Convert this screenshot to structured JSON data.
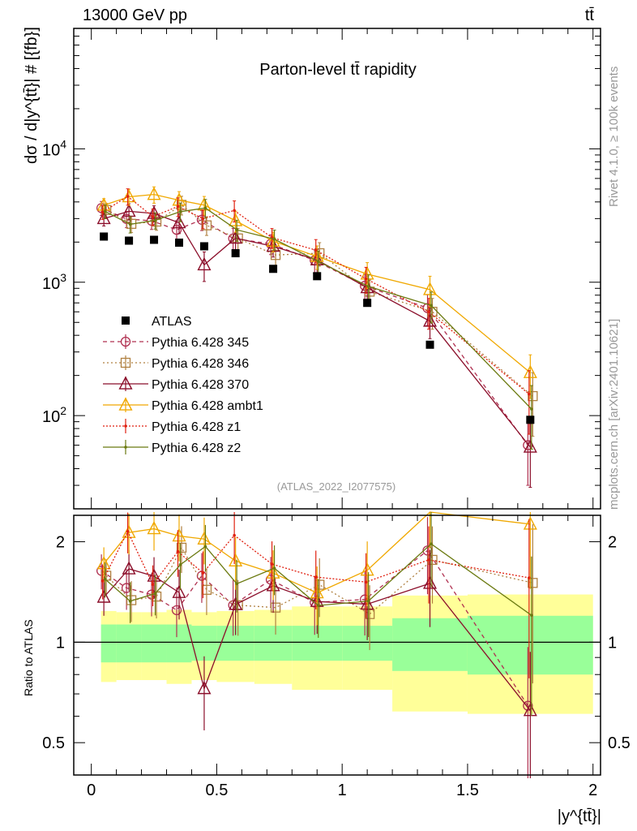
{
  "header": {
    "energy": "13000 GeV pp",
    "process": "tt̄"
  },
  "side": {
    "rivet": "Rivet 4.1.0, ≥ 100k events",
    "source": "mcplots.cern.ch [arXiv:2401.10621]"
  },
  "chart_data": {
    "type": "scatter",
    "title": "Parton-level tt̄ rapidity",
    "analysis": "(ATLAS_2022_I2077575)",
    "xlabel": "|y^{tt̄}|",
    "ylabel": "dσ / d|y^{tt̄}| # [{fb}]",
    "ratio_ylabel": "Ratio to ATLAS",
    "xlim": [
      -0.07,
      2.03
    ],
    "ylim": [
      20,
      80000
    ],
    "ratio_ylim": [
      0.4,
      2.4
    ],
    "yscale": "log",
    "x_ticks": [
      "0",
      "0.5",
      "1",
      "1.5",
      "2"
    ],
    "y_ticks": [
      "10^2",
      "10^3",
      "10^4"
    ],
    "ratio_ticks": [
      "0.5",
      "1",
      "2"
    ],
    "x": [
      0.05,
      0.15,
      0.25,
      0.35,
      0.45,
      0.575,
      0.725,
      0.9,
      1.1,
      1.35,
      1.75
    ],
    "bins": [
      0.0,
      0.1,
      0.2,
      0.3,
      0.4,
      0.5,
      0.65,
      0.8,
      1.0,
      1.2,
      1.5,
      2.0
    ],
    "data": {
      "name": "ATLAS",
      "values": [
        2200,
        2050,
        2080,
        1980,
        1860,
        1650,
        1260,
        1110,
        700,
        340,
        93
      ]
    },
    "band_inner": [
      0.13,
      0.13,
      0.13,
      0.13,
      0.12,
      0.12,
      0.12,
      0.12,
      0.12,
      0.18,
      0.2
    ],
    "band_outer": [
      0.24,
      0.23,
      0.23,
      0.25,
      0.23,
      0.24,
      0.25,
      0.28,
      0.28,
      0.38,
      0.39
    ],
    "series": [
      {
        "name": "Pythia 6.428 345",
        "color": "#b03050",
        "marker": "circle",
        "dash": "5,4",
        "values": [
          3600,
          2980,
          2890,
          2470,
          2940,
          2130,
          1940,
          1460,
          940,
          640,
          60
        ],
        "err": [
          0.12,
          0.14,
          0.14,
          0.17,
          0.17,
          0.19,
          0.17,
          0.2,
          0.22,
          0.26,
          0.5
        ]
      },
      {
        "name": "Pythia 6.428 346",
        "color": "#b08040",
        "marker": "square",
        "dash": "2,3",
        "values": [
          3480,
          2740,
          2850,
          3800,
          2670,
          2130,
          1600,
          1650,
          850,
          600,
          140
        ],
        "err": [
          0.12,
          0.14,
          0.14,
          0.16,
          0.16,
          0.19,
          0.17,
          0.2,
          0.22,
          0.26,
          0.5
        ]
      },
      {
        "name": "Pythia 6.428 370",
        "color": "#8b0e2a",
        "marker": "triangle",
        "dash": "",
        "values": [
          3000,
          3400,
          3280,
          2790,
          1350,
          2140,
          1860,
          1470,
          910,
          510,
          58
        ],
        "err": [
          0.12,
          0.14,
          0.14,
          0.17,
          0.25,
          0.19,
          0.17,
          0.2,
          0.22,
          0.26,
          0.5
        ]
      },
      {
        "name": "Pythia 6.428 ambt1",
        "color": "#f0a800",
        "marker": "triangle",
        "dash": "",
        "values": [
          3780,
          4370,
          4550,
          4120,
          3790,
          2890,
          2030,
          1560,
          1150,
          880,
          210
        ],
        "err": [
          0.12,
          0.14,
          0.14,
          0.16,
          0.16,
          0.18,
          0.17,
          0.2,
          0.22,
          0.26,
          0.36
        ]
      },
      {
        "name": "Pythia 6.428 z1",
        "color": "#e02010",
        "marker": "dot",
        "dash": "2,2",
        "values": [
          3360,
          4400,
          3100,
          3700,
          3000,
          3450,
          2160,
          1740,
          1060,
          600,
          145
        ],
        "err": [
          0.12,
          0.14,
          0.14,
          0.16,
          0.16,
          0.18,
          0.17,
          0.2,
          0.22,
          0.26,
          0.5
        ]
      },
      {
        "name": "Pythia 6.428 z2",
        "color": "#6b7a10",
        "marker": "dot",
        "dash": "",
        "values": [
          3400,
          2720,
          2910,
          3380,
          3600,
          2470,
          2100,
          1430,
          930,
          670,
          112
        ],
        "err": [
          0.12,
          0.14,
          0.14,
          0.16,
          0.16,
          0.18,
          0.17,
          0.2,
          0.22,
          0.26,
          0.5
        ]
      }
    ]
  }
}
